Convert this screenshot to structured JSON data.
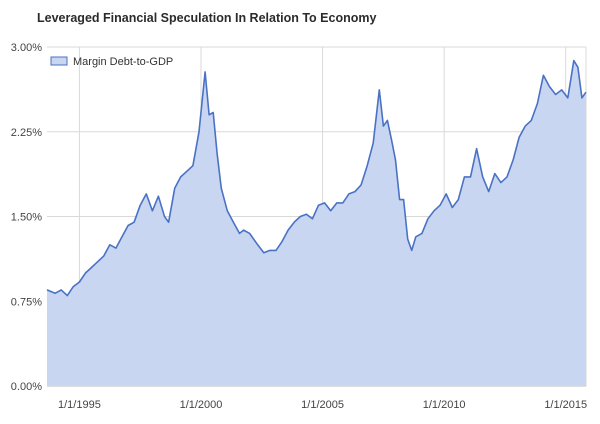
{
  "chart_data": {
    "type": "area",
    "title": "Leveraged Financial Speculation In Relation To Economy",
    "xlabel": "",
    "ylabel": "",
    "ylim": [
      0,
      3.0
    ],
    "xlim": [
      "1993-09-01",
      "2015-11-01"
    ],
    "y_ticks": [
      "0.00%",
      "0.75%",
      "1.50%",
      "2.25%",
      "3.00%"
    ],
    "y_tick_values": [
      0,
      0.75,
      1.5,
      2.25,
      3.0
    ],
    "x_ticks": [
      "1/1/1995",
      "1/1/2000",
      "1/1/2005",
      "1/1/2010",
      "1/1/2015"
    ],
    "x_tick_years": [
      1995,
      2000,
      2005,
      2010,
      2015
    ],
    "grid": true,
    "legend_position": "top-left",
    "colors": {
      "line": "#4a72c4",
      "fill": "#c8d6f2",
      "grid": "#d9d9d9",
      "axis_text": "#444444"
    },
    "series": [
      {
        "name": "Margin Debt-to-GDP",
        "x": [
          "1993-09",
          "1994-01",
          "1994-04",
          "1994-07",
          "1994-10",
          "1995-01",
          "1995-04",
          "1995-07",
          "1995-10",
          "1996-01",
          "1996-04",
          "1996-07",
          "1996-10",
          "1997-01",
          "1997-04",
          "1997-07",
          "1997-10",
          "1998-01",
          "1998-04",
          "1998-07",
          "1998-09",
          "1998-12",
          "1999-03",
          "1999-06",
          "1999-09",
          "1999-12",
          "2000-03",
          "2000-05",
          "2000-07",
          "2000-09",
          "2000-11",
          "2001-02",
          "2001-05",
          "2001-08",
          "2001-10",
          "2002-01",
          "2002-05",
          "2002-08",
          "2002-11",
          "2003-02",
          "2003-05",
          "2003-08",
          "2003-11",
          "2004-02",
          "2004-05",
          "2004-08",
          "2004-11",
          "2005-02",
          "2005-05",
          "2005-08",
          "2005-11",
          "2006-02",
          "2006-05",
          "2006-08",
          "2006-11",
          "2007-02",
          "2007-05",
          "2007-07",
          "2007-09",
          "2007-11",
          "2008-01",
          "2008-03",
          "2008-05",
          "2008-07",
          "2008-09",
          "2008-11",
          "2009-02",
          "2009-05",
          "2009-08",
          "2009-11",
          "2010-02",
          "2010-05",
          "2010-08",
          "2010-11",
          "2011-02",
          "2011-05",
          "2011-08",
          "2011-11",
          "2012-02",
          "2012-05",
          "2012-08",
          "2012-11",
          "2013-02",
          "2013-05",
          "2013-08",
          "2013-11",
          "2014-02",
          "2014-05",
          "2014-08",
          "2014-11",
          "2015-02",
          "2015-05",
          "2015-07",
          "2015-09",
          "2015-11"
        ],
        "values": [
          0.85,
          0.82,
          0.85,
          0.8,
          0.88,
          0.92,
          1.0,
          1.05,
          1.1,
          1.15,
          1.25,
          1.22,
          1.32,
          1.42,
          1.45,
          1.6,
          1.7,
          1.55,
          1.68,
          1.5,
          1.45,
          1.75,
          1.85,
          1.9,
          1.95,
          2.25,
          2.78,
          2.4,
          2.42,
          2.05,
          1.75,
          1.55,
          1.45,
          1.35,
          1.38,
          1.35,
          1.25,
          1.18,
          1.2,
          1.2,
          1.28,
          1.38,
          1.45,
          1.5,
          1.52,
          1.48,
          1.6,
          1.62,
          1.55,
          1.62,
          1.62,
          1.7,
          1.72,
          1.78,
          1.95,
          2.15,
          2.62,
          2.3,
          2.35,
          2.18,
          2.0,
          1.65,
          1.65,
          1.3,
          1.2,
          1.32,
          1.35,
          1.48,
          1.55,
          1.6,
          1.7,
          1.58,
          1.65,
          1.85,
          1.85,
          2.1,
          1.85,
          1.72,
          1.88,
          1.8,
          1.85,
          2.0,
          2.2,
          2.3,
          2.35,
          2.5,
          2.75,
          2.65,
          2.58,
          2.62,
          2.55,
          2.88,
          2.82,
          2.55,
          2.6
        ]
      }
    ]
  }
}
